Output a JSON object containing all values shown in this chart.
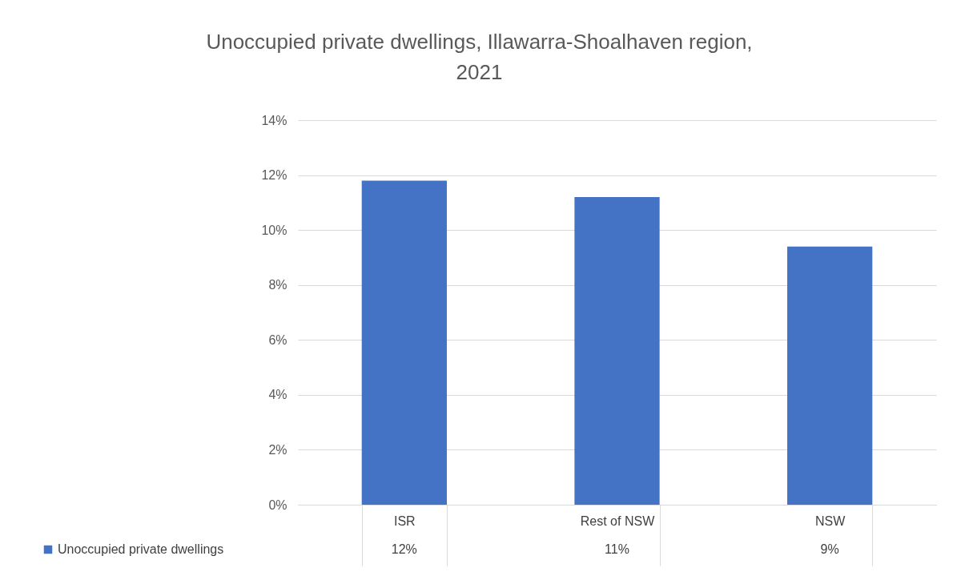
{
  "chart_data": {
    "type": "bar",
    "title": "Unoccupied private dwellings, Illawarra-Shoalhaven region, 2021",
    "categories": [
      "ISR",
      "Rest of NSW",
      "NSW"
    ],
    "series": [
      {
        "name": "Unoccupied private dwellings",
        "color": "#4472c4",
        "values": [
          11.8,
          11.2,
          9.4
        ],
        "value_labels": [
          "12%",
          "11%",
          "9%"
        ]
      }
    ],
    "ylim": [
      0,
      14
    ],
    "yticks": [
      {
        "value": 0,
        "label": "0%"
      },
      {
        "value": 2,
        "label": "2%"
      },
      {
        "value": 4,
        "label": "4%"
      },
      {
        "value": 6,
        "label": "6%"
      },
      {
        "value": 8,
        "label": "8%"
      },
      {
        "value": 10,
        "label": "10%"
      },
      {
        "value": 12,
        "label": "12%"
      },
      {
        "value": 14,
        "label": "14%"
      }
    ],
    "grid": true,
    "legend": "bottom left"
  }
}
